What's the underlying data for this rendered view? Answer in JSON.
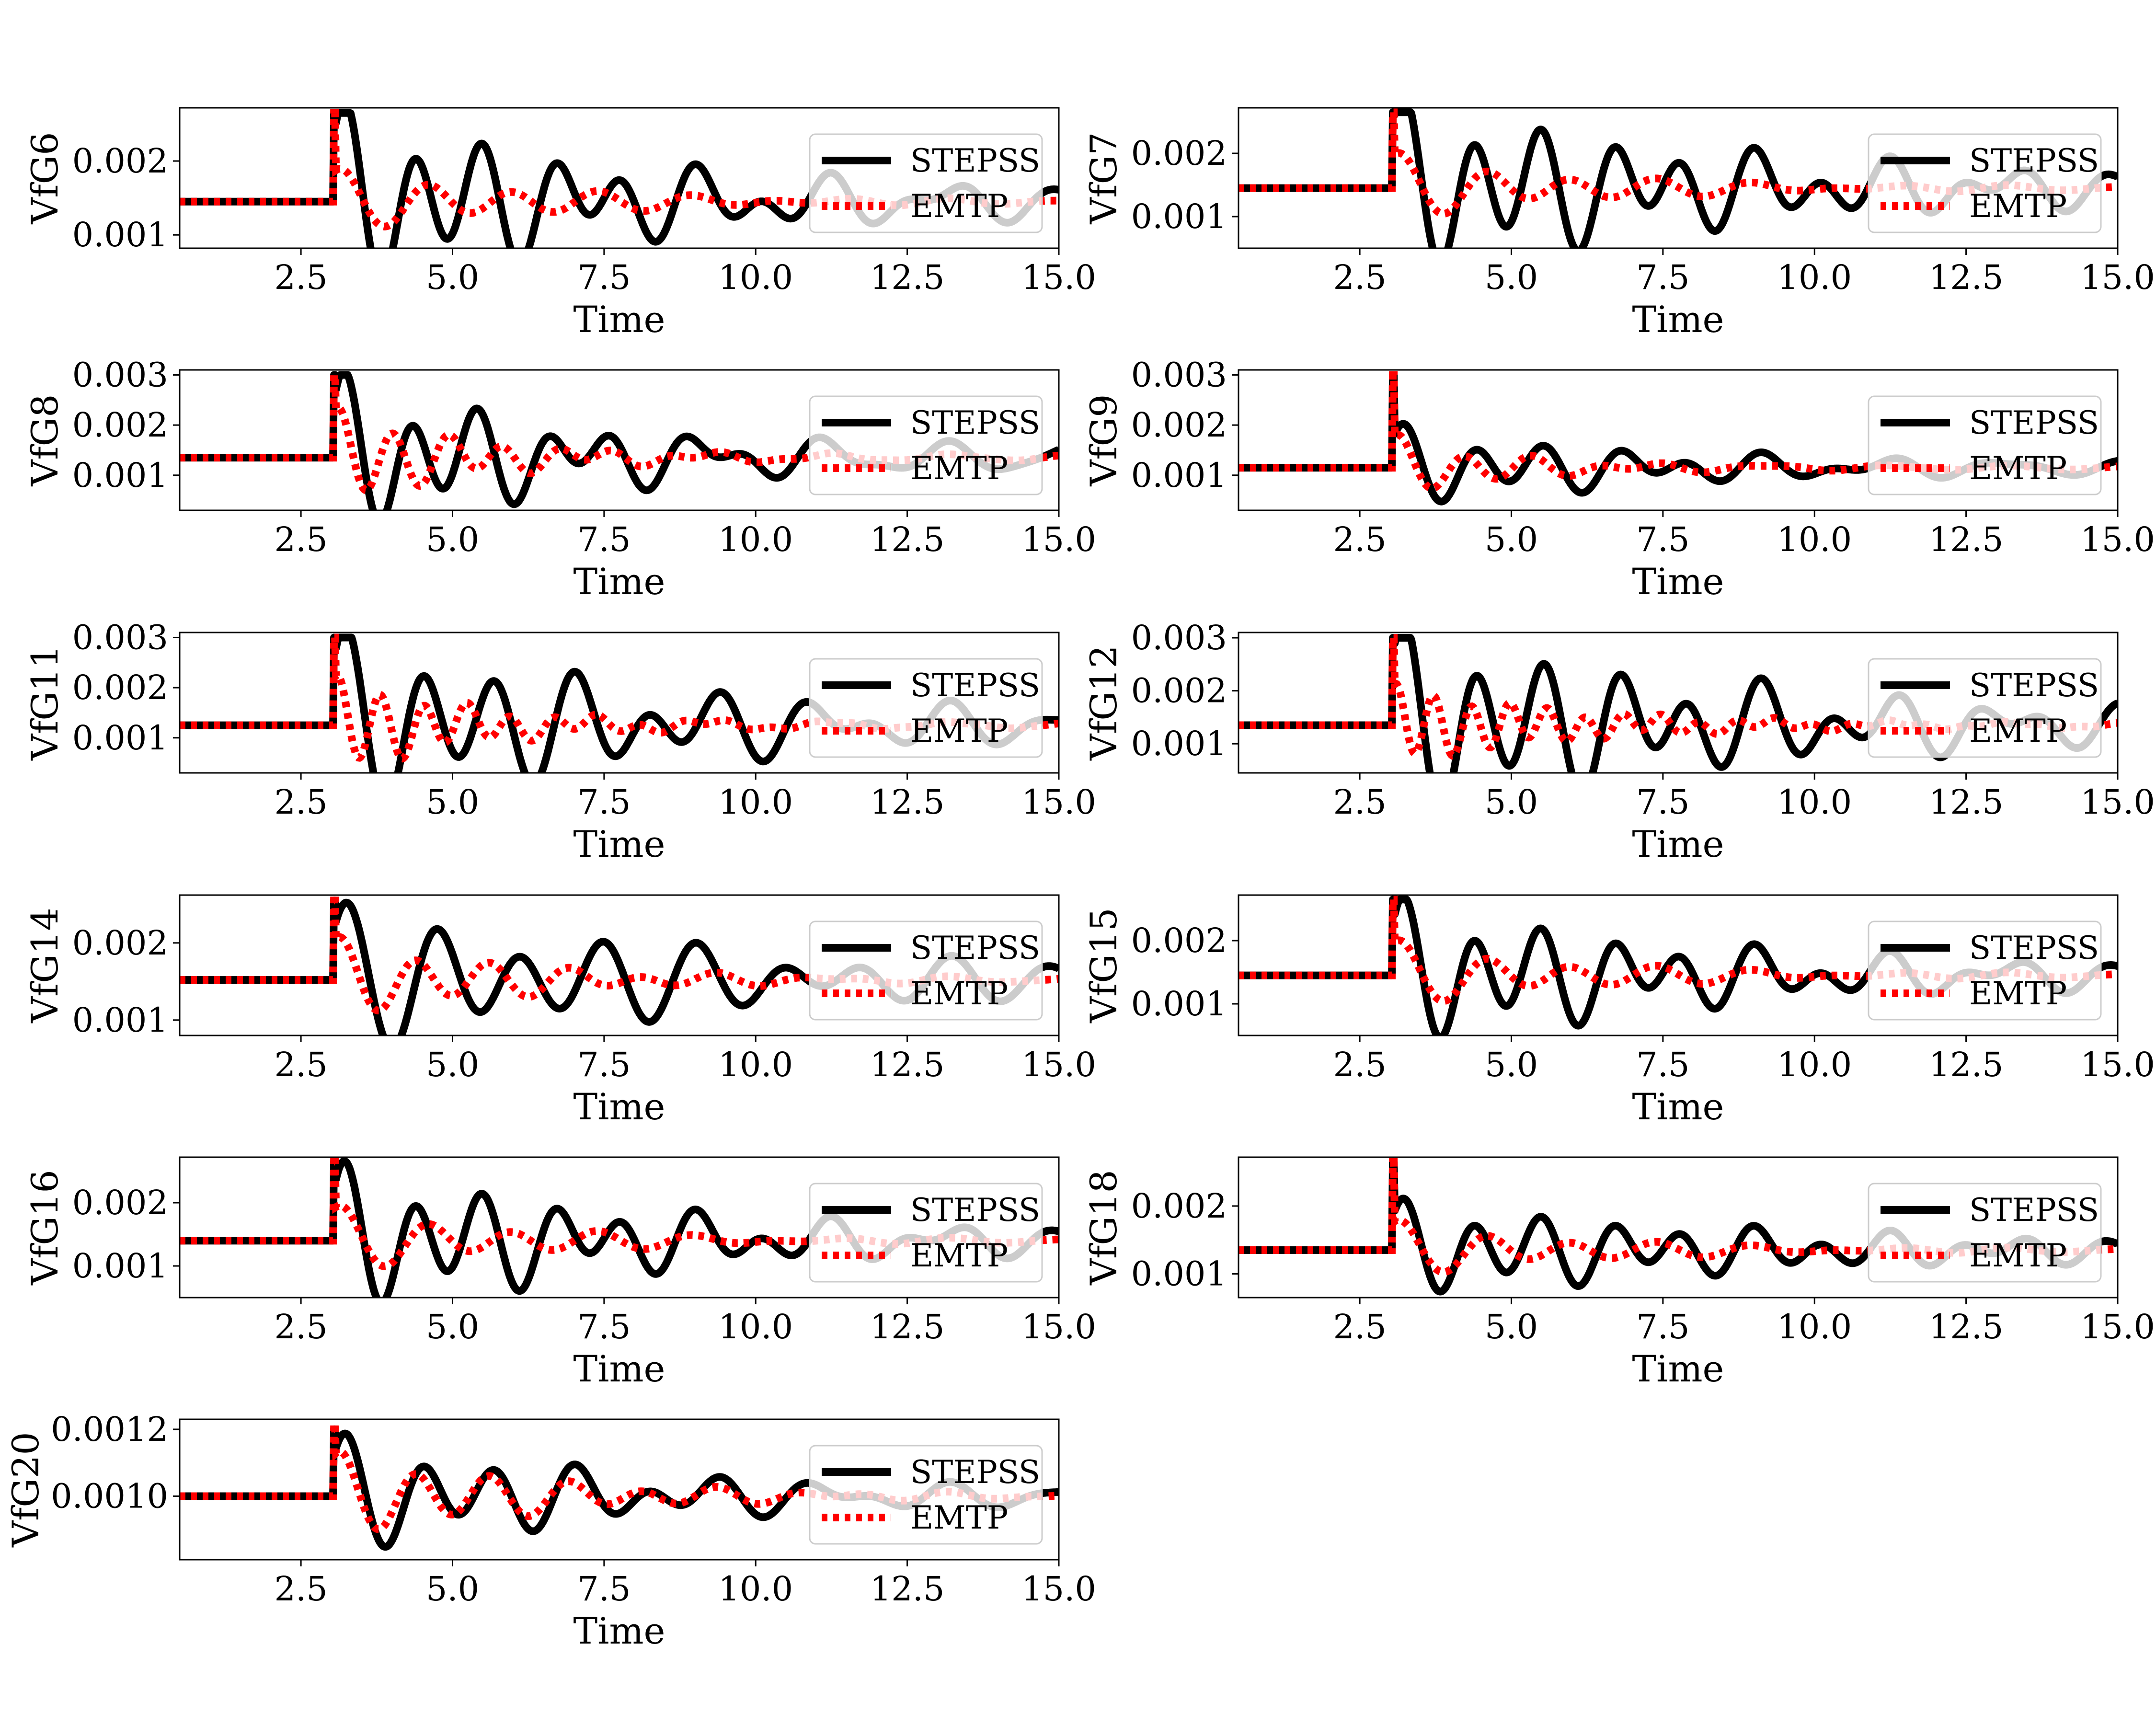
{
  "chart_data": [
    {
      "type": "line",
      "ylabel": "VfG6",
      "xlabel": "Time",
      "xlim": [
        0.5,
        15.0
      ],
      "ylim": [
        0.00082,
        0.00272
      ],
      "xticks": [
        "2.5",
        "5.0",
        "7.5",
        "10.0",
        "12.5",
        "15.0"
      ],
      "yticks": [
        {
          "label": "0.001",
          "v": 0.001
        },
        {
          "label": "0.002",
          "v": 0.002
        }
      ],
      "base": 0.00145,
      "top": 0.00265,
      "ampA": 0.0011,
      "ampB": 0.0004,
      "freqA": 0.87,
      "freqB": 0.7,
      "decA": 0.22,
      "decB": 0.3,
      "series": [
        {
          "name": "STEPSS",
          "color": "#000000"
        },
        {
          "name": "EMTP",
          "color": "#ff0000"
        }
      ],
      "legend": "right"
    },
    {
      "type": "line",
      "ylabel": "VfG7",
      "xlabel": "Time",
      "xlim": [
        0.5,
        15.0
      ],
      "ylim": [
        0.0005,
        0.00272
      ],
      "xticks": [
        "2.5",
        "5.0",
        "7.5",
        "10.0",
        "12.5",
        "15.0"
      ],
      "yticks": [
        {
          "label": "0.001",
          "v": 0.001
        },
        {
          "label": "0.002",
          "v": 0.002
        }
      ],
      "base": 0.00145,
      "top": 0.00265,
      "ampA": 0.0012,
      "ampB": 0.0005,
      "freqA": 0.87,
      "freqB": 0.7,
      "decA": 0.18,
      "decB": 0.35,
      "series": [
        {
          "name": "STEPSS",
          "color": "#000000"
        },
        {
          "name": "EMTP",
          "color": "#ff0000"
        }
      ],
      "legend": "right"
    },
    {
      "type": "line",
      "ylabel": "VfG8",
      "xlabel": "Time",
      "xlim": [
        0.5,
        15.0
      ],
      "ylim": [
        0.0003,
        0.0031
      ],
      "xticks": [
        "2.5",
        "5.0",
        "7.5",
        "10.0",
        "12.5",
        "15.0"
      ],
      "yticks": [
        {
          "label": "0.001",
          "v": 0.001
        },
        {
          "label": "0.002",
          "v": 0.002
        },
        {
          "label": "0.003",
          "v": 0.003
        }
      ],
      "base": 0.00135,
      "top": 0.003,
      "ampA": 0.0014,
      "ampB": 0.0009,
      "freqA": 0.9,
      "freqB": 1.1,
      "decA": 0.28,
      "decB": 0.45,
      "series": [
        {
          "name": "STEPSS",
          "color": "#000000"
        },
        {
          "name": "EMTP",
          "color": "#ff0000"
        }
      ],
      "legend": "right"
    },
    {
      "type": "line",
      "ylabel": "VfG9",
      "xlabel": "Time",
      "xlim": [
        0.5,
        15.0
      ],
      "ylim": [
        0.0003,
        0.0031
      ],
      "xticks": [
        "2.5",
        "5.0",
        "7.5",
        "10.0",
        "12.5",
        "15.0"
      ],
      "yticks": [
        {
          "label": "0.001",
          "v": 0.001
        },
        {
          "label": "0.002",
          "v": 0.002
        },
        {
          "label": "0.003",
          "v": 0.003
        }
      ],
      "base": 0.00115,
      "top": 0.003,
      "ampA": 0.0007,
      "ampB": 0.0006,
      "freqA": 0.85,
      "freqB": 0.9,
      "decA": 0.25,
      "decB": 0.55,
      "series": [
        {
          "name": "STEPSS",
          "color": "#000000"
        },
        {
          "name": "EMTP",
          "color": "#ff0000"
        }
      ],
      "legend": "right"
    },
    {
      "type": "line",
      "ylabel": "VfG11",
      "xlabel": "Time",
      "xlim": [
        0.5,
        15.0
      ],
      "ylim": [
        0.0003,
        0.0031
      ],
      "xticks": [
        "2.5",
        "5.0",
        "7.5",
        "10.0",
        "12.5",
        "15.0"
      ],
      "yticks": [
        {
          "label": "0.001",
          "v": 0.001
        },
        {
          "label": "0.002",
          "v": 0.002
        },
        {
          "label": "0.003",
          "v": 0.003
        }
      ],
      "base": 0.00125,
      "top": 0.003,
      "ampA": 0.0016,
      "ampB": 0.0009,
      "freqA": 0.8,
      "freqB": 1.4,
      "decA": 0.2,
      "decB": 0.45,
      "series": [
        {
          "name": "STEPSS",
          "color": "#000000"
        },
        {
          "name": "EMTP",
          "color": "#ff0000"
        }
      ],
      "legend": "right"
    },
    {
      "type": "line",
      "ylabel": "VfG12",
      "xlabel": "Time",
      "xlim": [
        0.5,
        15.0
      ],
      "ylim": [
        0.00045,
        0.0031
      ],
      "xticks": [
        "2.5",
        "5.0",
        "7.5",
        "10.0",
        "12.5",
        "15.0"
      ],
      "yticks": [
        {
          "label": "0.001",
          "v": 0.001
        },
        {
          "label": "0.002",
          "v": 0.002
        },
        {
          "label": "0.003",
          "v": 0.003
        }
      ],
      "base": 0.00135,
      "top": 0.003,
      "ampA": 0.0016,
      "ampB": 0.0007,
      "freqA": 0.85,
      "freqB": 1.6,
      "decA": 0.18,
      "decB": 0.35,
      "series": [
        {
          "name": "STEPSS",
          "color": "#000000"
        },
        {
          "name": "EMTP",
          "color": "#ff0000"
        }
      ],
      "legend": "right"
    },
    {
      "type": "line",
      "ylabel": "VfG14",
      "xlabel": "Time",
      "xlim": [
        0.5,
        15.0
      ],
      "ylim": [
        0.0008,
        0.00262
      ],
      "xticks": [
        "2.5",
        "5.0",
        "7.5",
        "10.0",
        "12.5",
        "15.0"
      ],
      "yticks": [
        {
          "label": "0.001",
          "v": 0.001
        },
        {
          "label": "0.002",
          "v": 0.002
        }
      ],
      "base": 0.00152,
      "top": 0.00255,
      "ampA": 0.0008,
      "ampB": 0.0005,
      "freqA": 0.7,
      "freqB": 0.8,
      "decA": 0.15,
      "decB": 0.35,
      "series": [
        {
          "name": "STEPSS",
          "color": "#000000"
        },
        {
          "name": "EMTP",
          "color": "#ff0000"
        }
      ],
      "legend": "right"
    },
    {
      "type": "line",
      "ylabel": "VfG15",
      "xlabel": "Time",
      "xlim": [
        0.5,
        15.0
      ],
      "ylim": [
        0.0005,
        0.00272
      ],
      "xticks": [
        "2.5",
        "5.0",
        "7.5",
        "10.0",
        "12.5",
        "15.0"
      ],
      "yticks": [
        {
          "label": "0.001",
          "v": 0.001
        },
        {
          "label": "0.002",
          "v": 0.002
        }
      ],
      "base": 0.00145,
      "top": 0.00265,
      "ampA": 0.001,
      "ampB": 0.0005,
      "freqA": 0.87,
      "freqB": 0.7,
      "decA": 0.2,
      "decB": 0.35,
      "series": [
        {
          "name": "STEPSS",
          "color": "#000000"
        },
        {
          "name": "EMTP",
          "color": "#ff0000"
        }
      ],
      "legend": "right"
    },
    {
      "type": "line",
      "ylabel": "VfG16",
      "xlabel": "Time",
      "xlim": [
        0.5,
        15.0
      ],
      "ylim": [
        0.0005,
        0.00272
      ],
      "xticks": [
        "2.5",
        "5.0",
        "7.5",
        "10.0",
        "12.5",
        "15.0"
      ],
      "yticks": [
        {
          "label": "0.001",
          "v": 0.001
        },
        {
          "label": "0.002",
          "v": 0.002
        }
      ],
      "base": 0.0014,
      "top": 0.00265,
      "ampA": 0.001,
      "ampB": 0.0005,
      "freqA": 0.87,
      "freqB": 0.7,
      "decA": 0.2,
      "decB": 0.35,
      "series": [
        {
          "name": "STEPSS",
          "color": "#000000"
        },
        {
          "name": "EMTP",
          "color": "#ff0000"
        }
      ],
      "legend": "right"
    },
    {
      "type": "line",
      "ylabel": "VfG18",
      "xlabel": "Time",
      "xlim": [
        0.5,
        15.0
      ],
      "ylim": [
        0.00065,
        0.00272
      ],
      "xticks": [
        "2.5",
        "5.0",
        "7.5",
        "10.0",
        "12.5",
        "15.0"
      ],
      "yticks": [
        {
          "label": "0.001",
          "v": 0.001
        },
        {
          "label": "0.002",
          "v": 0.002
        }
      ],
      "base": 0.00135,
      "top": 0.00265,
      "ampA": 0.0006,
      "ampB": 0.0004,
      "freqA": 0.87,
      "freqB": 0.7,
      "decA": 0.15,
      "decB": 0.35,
      "series": [
        {
          "name": "STEPSS",
          "color": "#000000"
        },
        {
          "name": "EMTP",
          "color": "#ff0000"
        }
      ],
      "legend": "right"
    },
    {
      "type": "line",
      "ylabel": "VfG20",
      "xlabel": "Time",
      "xlim": [
        0.5,
        15.0
      ],
      "ylim": [
        0.00081,
        0.00123
      ],
      "xticks": [
        "2.5",
        "5.0",
        "7.5",
        "10.0",
        "12.5",
        "15.0"
      ],
      "yticks": [
        {
          "label": "0.0010",
          "v": 0.001
        },
        {
          "label": "0.0012",
          "v": 0.0012
        }
      ],
      "base": 0.001,
      "top": 0.0012,
      "ampA": 0.00015,
      "ampB": 0.00012,
      "freqA": 0.8,
      "freqB": 0.8,
      "decA": 0.22,
      "decB": 0.3,
      "series": [
        {
          "name": "STEPSS",
          "color": "#000000"
        },
        {
          "name": "EMTP",
          "color": "#ff0000"
        }
      ],
      "legend": "right"
    }
  ]
}
